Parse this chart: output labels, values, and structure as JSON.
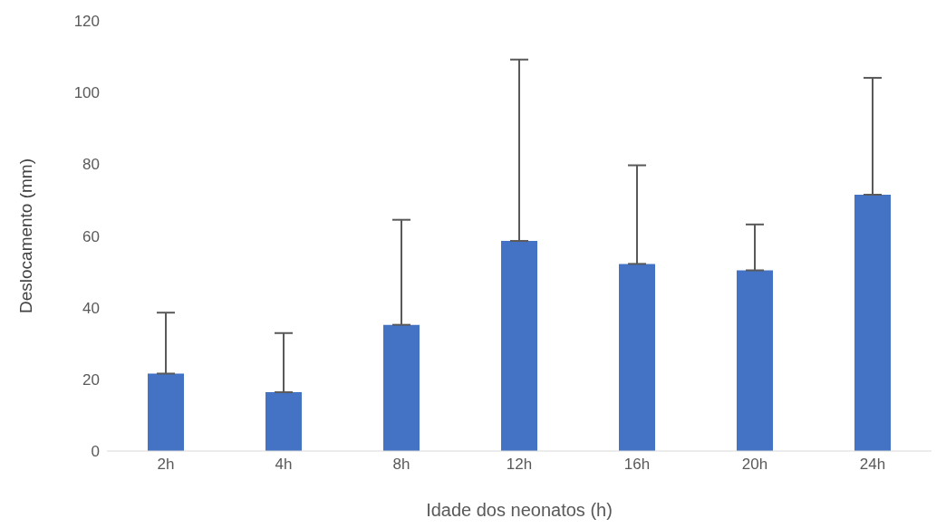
{
  "chart_data": {
    "type": "bar",
    "xlabel": "Idade dos neonatos (h)",
    "ylabel": "Deslocamento (mm)",
    "categories": [
      "2h",
      "4h",
      "8h",
      "12h",
      "16h",
      "20h",
      "24h"
    ],
    "values": [
      21.6,
      16.4,
      35.2,
      58.6,
      52.2,
      50.4,
      71.5
    ],
    "errors": [
      [
        21.6,
        38.6
      ],
      [
        16.4,
        32.9
      ],
      [
        35.2,
        64.5
      ],
      [
        58.6,
        109.2
      ],
      [
        52.2,
        79.7
      ],
      [
        50.4,
        63.2
      ],
      [
        71.5,
        104.1
      ]
    ],
    "color": "#4472c4",
    "ylim": [
      0,
      120
    ],
    "yticks": [
      0,
      20,
      40,
      60,
      80,
      100,
      120
    ],
    "grid": false,
    "legend": false
  }
}
